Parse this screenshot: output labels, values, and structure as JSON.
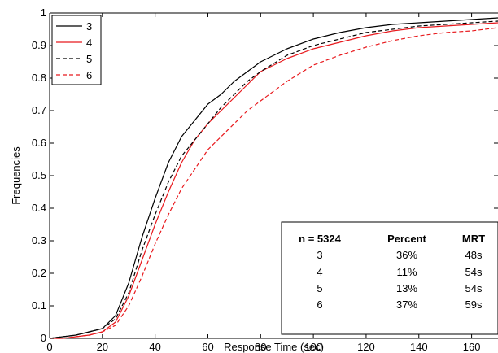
{
  "chart_data": {
    "type": "line",
    "title": "",
    "xlabel": "Response Time (sec)",
    "ylabel": "Frequencies",
    "xlim": [
      0,
      170
    ],
    "ylim": [
      0,
      1
    ],
    "xticks": [
      0,
      20,
      40,
      60,
      80,
      100,
      120,
      140,
      160
    ],
    "yticks": [
      0,
      0.1,
      0.2,
      0.3,
      0.4,
      0.5,
      0.6,
      0.7,
      0.8,
      0.9,
      1
    ],
    "ytick_labels": [
      "0",
      "0.1",
      "0.2",
      "0.3",
      "0.4",
      "0.5",
      "0.6",
      "0.7",
      "0.8",
      "0.9",
      "1"
    ],
    "grid": false,
    "legend_position": "top-left",
    "series": [
      {
        "name": "3",
        "color": "#000000",
        "style": "solid",
        "x": [
          0,
          5,
          10,
          15,
          20,
          25,
          30,
          35,
          40,
          45,
          50,
          55,
          60,
          65,
          70,
          75,
          80,
          90,
          100,
          110,
          120,
          130,
          140,
          150,
          160,
          170
        ],
        "y": [
          0,
          0.005,
          0.01,
          0.02,
          0.03,
          0.07,
          0.17,
          0.31,
          0.43,
          0.54,
          0.62,
          0.67,
          0.72,
          0.75,
          0.79,
          0.82,
          0.85,
          0.89,
          0.92,
          0.94,
          0.955,
          0.965,
          0.97,
          0.975,
          0.98,
          0.985
        ]
      },
      {
        "name": "4",
        "color": "#e8191d",
        "style": "solid",
        "x": [
          0,
          5,
          10,
          15,
          20,
          25,
          30,
          35,
          40,
          45,
          50,
          55,
          60,
          65,
          70,
          75,
          80,
          90,
          100,
          110,
          120,
          130,
          140,
          150,
          160,
          170
        ],
        "y": [
          0,
          0,
          0.005,
          0.01,
          0.02,
          0.05,
          0.13,
          0.24,
          0.35,
          0.45,
          0.54,
          0.61,
          0.66,
          0.7,
          0.74,
          0.78,
          0.82,
          0.86,
          0.89,
          0.91,
          0.93,
          0.945,
          0.955,
          0.96,
          0.965,
          0.97
        ]
      },
      {
        "name": "5",
        "color": "#000000",
        "style": "dashed",
        "x": [
          0,
          5,
          10,
          15,
          20,
          25,
          30,
          35,
          40,
          45,
          50,
          55,
          60,
          65,
          70,
          75,
          80,
          90,
          100,
          110,
          120,
          130,
          140,
          150,
          160,
          170
        ],
        "y": [
          0,
          0.005,
          0.01,
          0.02,
          0.03,
          0.06,
          0.14,
          0.27,
          0.38,
          0.48,
          0.56,
          0.61,
          0.66,
          0.71,
          0.75,
          0.79,
          0.82,
          0.87,
          0.9,
          0.92,
          0.94,
          0.95,
          0.96,
          0.965,
          0.97,
          0.975
        ]
      },
      {
        "name": "6",
        "color": "#e8191d",
        "style": "dashed",
        "x": [
          0,
          5,
          10,
          15,
          20,
          25,
          30,
          35,
          40,
          45,
          50,
          55,
          60,
          65,
          70,
          75,
          80,
          90,
          100,
          110,
          120,
          130,
          140,
          150,
          160,
          170
        ],
        "y": [
          0,
          0,
          0.005,
          0.01,
          0.02,
          0.04,
          0.1,
          0.19,
          0.29,
          0.38,
          0.46,
          0.52,
          0.58,
          0.62,
          0.66,
          0.7,
          0.73,
          0.79,
          0.84,
          0.87,
          0.895,
          0.915,
          0.93,
          0.94,
          0.945,
          0.955
        ]
      }
    ],
    "legend_entries": [
      "3",
      "4",
      "5",
      "6"
    ],
    "table": {
      "headers": [
        "n = 5324",
        "Percent",
        "MRT"
      ],
      "rows": [
        [
          "3",
          "36%",
          "48s"
        ],
        [
          "4",
          "11%",
          "54s"
        ],
        [
          "5",
          "13%",
          "54s"
        ],
        [
          "6",
          "37%",
          "59s"
        ]
      ]
    }
  }
}
